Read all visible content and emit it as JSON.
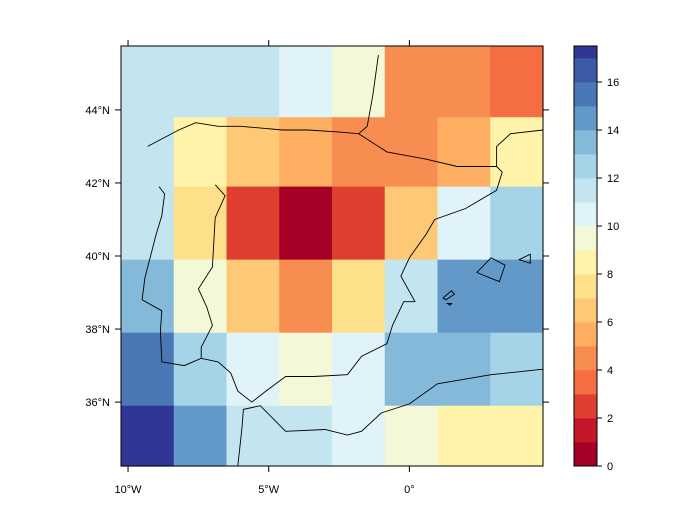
{
  "chart_data": {
    "type": "heatmap",
    "title": "",
    "xlabel": "",
    "ylabel": "",
    "x_range": [
      -10.25,
      4.75
    ],
    "y_range": [
      34.25,
      45.75
    ],
    "x_ticks": [
      {
        "value": -10,
        "label": "10°W"
      },
      {
        "value": -5,
        "label": "5°W"
      },
      {
        "value": 0,
        "label": "0°"
      }
    ],
    "y_ticks": [
      {
        "value": 36,
        "label": "36°N"
      },
      {
        "value": 38,
        "label": "38°N"
      },
      {
        "value": 40,
        "label": "40°N"
      },
      {
        "value": 42,
        "label": "42°N"
      },
      {
        "value": 44,
        "label": "44°N"
      }
    ],
    "x_edges": [
      -10.25,
      -8.375,
      -6.5,
      -4.625,
      -2.75,
      -0.875,
      1.0,
      2.875,
      4.75
    ],
    "y_edges": [
      45.75,
      43.8,
      41.9,
      39.9,
      37.9,
      35.9,
      34.25
    ],
    "grid": [
      [
        11.5,
        11.5,
        11.5,
        10.3,
        9.2,
        4.0,
        4.0,
        3.0
      ],
      [
        11.5,
        8.0,
        6.0,
        5.0,
        4.0,
        4.0,
        5.0,
        8.0
      ],
      [
        11.5,
        7.0,
        2.5,
        0.2,
        2.5,
        6.0,
        10.3,
        12.5
      ],
      [
        13.0,
        9.2,
        6.0,
        4.0,
        7.0,
        11.5,
        14.5,
        14.5
      ],
      [
        15.5,
        12.5,
        10.3,
        9.2,
        10.3,
        13.0,
        13.0,
        12.5
      ],
      [
        17.0,
        14.5,
        11.5,
        11.5,
        10.3,
        9.2,
        8.0,
        8.0
      ]
    ],
    "colorbar": {
      "min": 0,
      "max": 17.5,
      "levels": [
        0,
        1,
        2,
        3,
        4,
        5,
        6,
        7,
        8,
        9,
        10,
        11,
        12,
        13,
        14,
        15,
        16,
        17,
        17.5
      ],
      "colors": [
        "#A50026",
        "#C6172A",
        "#DE3F2E",
        "#F46D43",
        "#F88D52",
        "#FDAE61",
        "#FDC977",
        "#FEE08B",
        "#FEF3A9",
        "#F3F9D8",
        "#E0F3F8",
        "#C3E5F0",
        "#A5D3E7",
        "#84B9D9",
        "#6399C9",
        "#4A77B6",
        "#3C5BA7",
        "#313695"
      ],
      "ticks": [
        {
          "value": 0,
          "label": "0"
        },
        {
          "value": 2,
          "label": "2"
        },
        {
          "value": 4,
          "label": "4"
        },
        {
          "value": 6,
          "label": "6"
        },
        {
          "value": 8,
          "label": "8"
        },
        {
          "value": 10,
          "label": "10"
        },
        {
          "value": 12,
          "label": "12"
        },
        {
          "value": 14,
          "label": "14"
        },
        {
          "value": 16,
          "label": "16"
        }
      ]
    },
    "coastline": [
      [
        -9.3,
        43.0
      ],
      [
        -8.2,
        43.45
      ],
      [
        -7.6,
        43.65
      ],
      [
        -6.8,
        43.55
      ],
      [
        -6.0,
        43.55
      ],
      [
        -4.5,
        43.45
      ],
      [
        -3.6,
        43.45
      ],
      [
        -2.6,
        43.4
      ],
      [
        -1.8,
        43.35
      ],
      [
        -1.5,
        43.55
      ],
      [
        -1.3,
        44.4
      ],
      [
        -1.1,
        45.5
      ]
    ],
    "border_lines": [
      [
        [
          -1.8,
          43.35
        ],
        [
          -0.8,
          42.85
        ],
        [
          0.6,
          42.65
        ],
        [
          1.7,
          42.45
        ],
        [
          3.1,
          42.45
        ]
      ],
      [
        [
          -6.9,
          41.95
        ],
        [
          -6.55,
          41.65
        ],
        [
          -6.9,
          41.05
        ],
        [
          -7.0,
          39.7
        ],
        [
          -7.5,
          39.1
        ],
        [
          -7.2,
          38.6
        ],
        [
          -7.0,
          38.1
        ],
        [
          -7.4,
          37.5
        ],
        [
          -7.4,
          37.2
        ]
      ]
    ],
    "iberia_coast": [
      [
        -8.9,
        41.9
      ],
      [
        -8.7,
        41.7
      ],
      [
        -8.8,
        41.1
      ],
      [
        -9.0,
        40.6
      ],
      [
        -9.4,
        39.4
      ],
      [
        -9.5,
        38.8
      ],
      [
        -8.8,
        38.5
      ],
      [
        -8.85,
        37.95
      ],
      [
        -8.8,
        37.1
      ],
      [
        -8.0,
        37.0
      ],
      [
        -7.4,
        37.2
      ],
      [
        -6.8,
        37.1
      ],
      [
        -6.35,
        36.8
      ],
      [
        -6.1,
        36.3
      ],
      [
        -5.6,
        36.0
      ],
      [
        -5.1,
        36.3
      ],
      [
        -4.4,
        36.7
      ],
      [
        -3.4,
        36.7
      ],
      [
        -2.2,
        36.75
      ],
      [
        -1.7,
        37.25
      ],
      [
        -0.8,
        37.6
      ],
      [
        -0.6,
        38.1
      ],
      [
        -0.2,
        38.75
      ],
      [
        0.2,
        38.75
      ],
      [
        -0.3,
        39.45
      ],
      [
        0.0,
        39.95
      ],
      [
        0.6,
        40.6
      ],
      [
        0.9,
        41.0
      ],
      [
        2.0,
        41.3
      ],
      [
        3.1,
        41.8
      ],
      [
        3.3,
        42.3
      ],
      [
        3.1,
        42.45
      ]
    ],
    "france_coast": [
      [
        3.1,
        42.45
      ],
      [
        3.1,
        43.0
      ],
      [
        3.6,
        43.35
      ],
      [
        4.75,
        43.45
      ]
    ],
    "africa_coast": [
      [
        -6.1,
        34.25
      ],
      [
        -5.95,
        35.3
      ],
      [
        -5.9,
        35.8
      ],
      [
        -5.3,
        35.9
      ],
      [
        -4.4,
        35.2
      ],
      [
        -3.0,
        35.25
      ],
      [
        -2.2,
        35.1
      ],
      [
        -1.7,
        35.2
      ],
      [
        -1.0,
        35.7
      ],
      [
        0.0,
        35.95
      ],
      [
        1.0,
        36.5
      ],
      [
        2.9,
        36.75
      ],
      [
        4.75,
        36.9
      ]
    ],
    "islands": [
      [
        [
          2.4,
          39.55
        ],
        [
          2.9,
          39.95
        ],
        [
          3.4,
          39.75
        ],
        [
          3.2,
          39.3
        ],
        [
          2.7,
          39.45
        ],
        [
          2.4,
          39.55
        ]
      ],
      [
        [
          1.2,
          38.85
        ],
        [
          1.5,
          39.05
        ],
        [
          1.6,
          38.95
        ],
        [
          1.3,
          38.8
        ],
        [
          1.2,
          38.85
        ]
      ],
      [
        [
          1.35,
          38.7
        ],
        [
          1.5,
          38.7
        ],
        [
          1.45,
          38.65
        ],
        [
          1.35,
          38.7
        ]
      ],
      [
        [
          3.9,
          39.9
        ],
        [
          4.3,
          40.05
        ],
        [
          4.3,
          39.8
        ],
        [
          3.9,
          39.9
        ]
      ]
    ]
  }
}
